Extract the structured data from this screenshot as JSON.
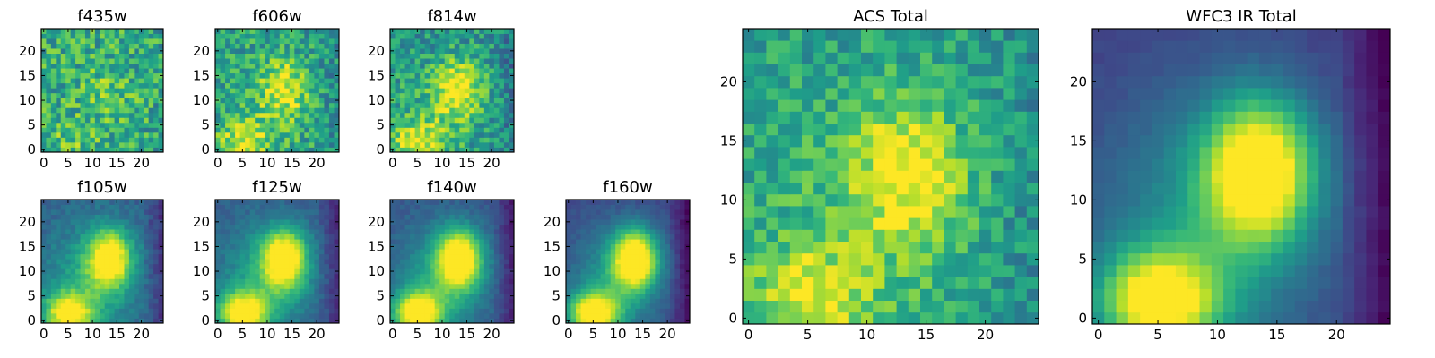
{
  "chart_data": [
    {
      "type": "heatmap",
      "title": "f435w",
      "grid_size": 25,
      "colormap": "viridis",
      "blob_strength": 0.12,
      "noise": 0.45,
      "base": 0.6,
      "seed": 11,
      "xticks": [
        "0",
        "5",
        "10",
        "15",
        "20"
      ],
      "yticks": [
        "0",
        "5",
        "10",
        "15",
        "20"
      ]
    },
    {
      "type": "heatmap",
      "title": "f606w",
      "grid_size": 25,
      "colormap": "viridis",
      "blob_strength": 0.35,
      "noise": 0.4,
      "base": 0.55,
      "seed": 23,
      "xticks": [
        "0",
        "5",
        "10",
        "15",
        "20"
      ],
      "yticks": [
        "0",
        "5",
        "10",
        "15",
        "20"
      ]
    },
    {
      "type": "heatmap",
      "title": "f814w",
      "grid_size": 25,
      "colormap": "viridis",
      "blob_strength": 0.45,
      "noise": 0.38,
      "base": 0.5,
      "seed": 37,
      "xticks": [
        "0",
        "5",
        "10",
        "15",
        "20"
      ],
      "yticks": [
        "0",
        "5",
        "10",
        "15",
        "20"
      ]
    },
    {
      "type": "heatmap",
      "title": "f105w",
      "grid_size": 25,
      "colormap": "viridis",
      "blob_strength": 0.75,
      "noise": 0.12,
      "base": 0.3,
      "seed": 41,
      "xticks": [
        "0",
        "5",
        "10",
        "15",
        "20"
      ],
      "yticks": [
        "0",
        "5",
        "10",
        "15",
        "20"
      ]
    },
    {
      "type": "heatmap",
      "title": "f125w",
      "grid_size": 25,
      "colormap": "viridis",
      "blob_strength": 0.8,
      "noise": 0.1,
      "base": 0.28,
      "seed": 53,
      "xticks": [
        "0",
        "5",
        "10",
        "15",
        "20"
      ],
      "yticks": [
        "0",
        "5",
        "10",
        "15",
        "20"
      ]
    },
    {
      "type": "heatmap",
      "title": "f140w",
      "grid_size": 25,
      "colormap": "viridis",
      "blob_strength": 0.85,
      "noise": 0.08,
      "base": 0.25,
      "seed": 67,
      "xticks": [
        "0",
        "5",
        "10",
        "15",
        "20"
      ],
      "yticks": [
        "0",
        "5",
        "10",
        "15",
        "20"
      ]
    },
    {
      "type": "heatmap",
      "title": "f160w",
      "grid_size": 25,
      "colormap": "viridis",
      "blob_strength": 0.9,
      "noise": 0.07,
      "base": 0.2,
      "seed": 79,
      "xticks": [
        "0",
        "5",
        "10",
        "15",
        "20"
      ],
      "yticks": [
        "0",
        "5",
        "10",
        "15",
        "20"
      ]
    },
    {
      "type": "heatmap",
      "title": "ACS Total",
      "grid_size": 25,
      "colormap": "viridis",
      "blob_strength": 0.4,
      "noise": 0.3,
      "base": 0.55,
      "seed": 97,
      "xticks": [
        "0",
        "5",
        "10",
        "15",
        "20"
      ],
      "yticks": [
        "0",
        "5",
        "10",
        "15",
        "20"
      ]
    },
    {
      "type": "heatmap",
      "title": "WFC3 IR Total",
      "grid_size": 25,
      "colormap": "viridis",
      "blob_strength": 0.9,
      "noise": 0.04,
      "base": 0.18,
      "seed": 103,
      "xticks": [
        "0",
        "5",
        "10",
        "15",
        "20"
      ],
      "yticks": [
        "0",
        "5",
        "10",
        "15",
        "20"
      ]
    }
  ]
}
